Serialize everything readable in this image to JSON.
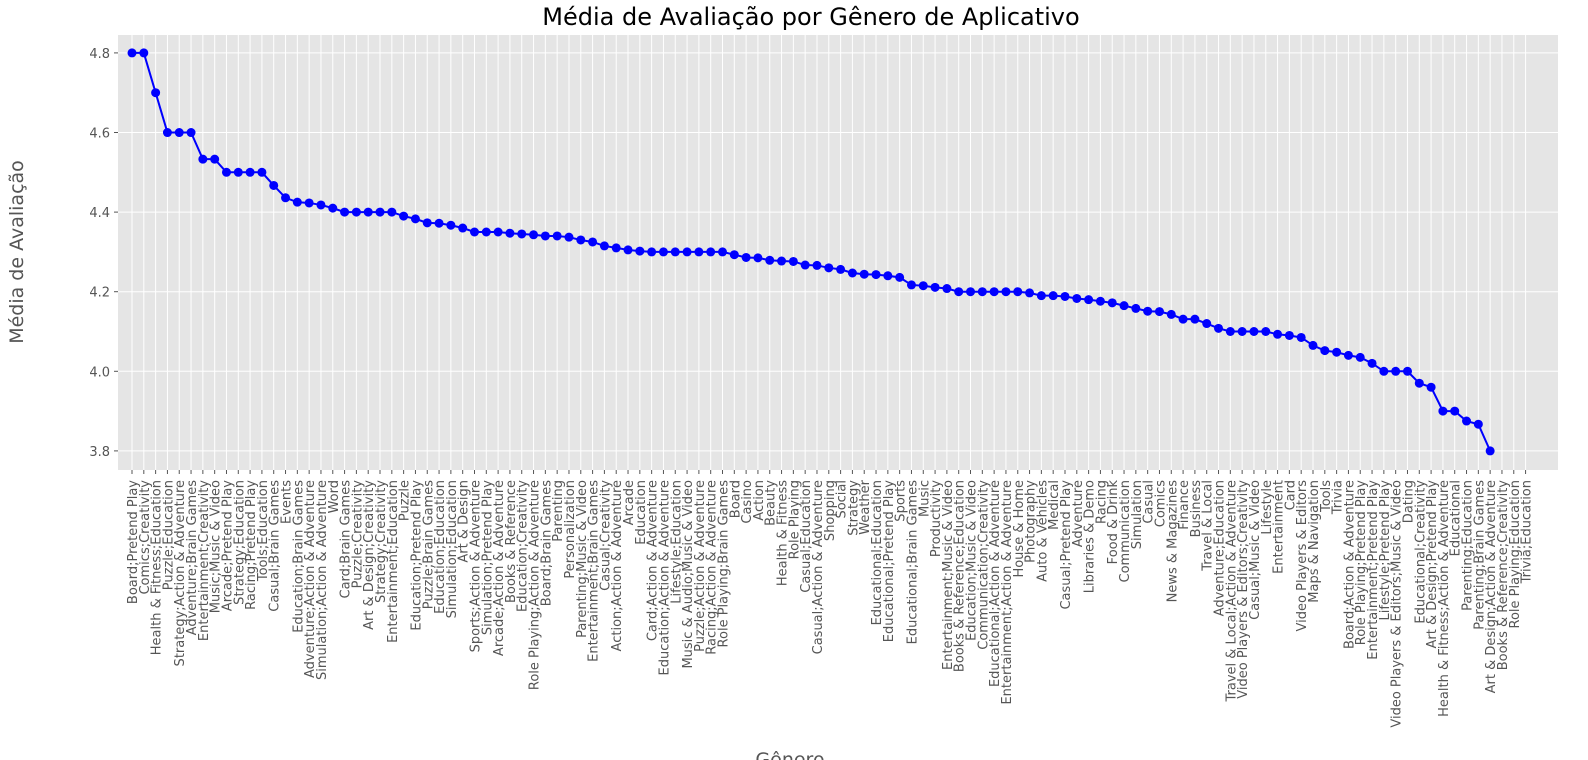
{
  "chart_data": {
    "type": "line",
    "title": "Média de Avaliação por Gênero de Aplicativo",
    "x_label": "Gênero",
    "y_label": "Média de Avaliação",
    "categories": [
      "Board;Pretend Play",
      "Comics;Creativity",
      "Health & Fitness;Education",
      "Puzzle;Education",
      "Strategy;Action & Adventure",
      "Adventure;Brain Games",
      "Entertainment;Creativity",
      "Music;Music & Video",
      "Arcade;Pretend Play",
      "Strategy;Education",
      "Racing;Pretend Play",
      "Tools;Education",
      "Casual;Brain Games",
      "Events",
      "Education;Brain Games",
      "Adventure;Action & Adventure",
      "Simulation;Action & Adventure",
      "Word",
      "Card;Brain Games",
      "Puzzle;Creativity",
      "Art & Design;Creativity",
      "Strategy;Creativity",
      "Entertainment;Education",
      "Puzzle",
      "Education;Pretend Play",
      "Puzzle;Brain Games",
      "Education;Education",
      "Simulation;Education",
      "Art & Design",
      "Sports;Action & Adventure",
      "Simulation;Pretend Play",
      "Arcade;Action & Adventure",
      "Books & Reference",
      "Education;Creativity",
      "Role Playing;Action & Adventure",
      "Board;Brain Games",
      "Parenting",
      "Personalization",
      "Parenting;Music & Video",
      "Entertainment;Brain Games",
      "Casual;Creativity",
      "Action;Action & Adventure",
      "Arcade",
      "Education",
      "Card;Action & Adventure",
      "Education;Action & Adventure",
      "Lifestyle;Education",
      "Music & Audio;Music & Video",
      "Puzzle;Action & Adventure",
      "Racing;Action & Adventure",
      "Role Playing;Brain Games",
      "Board",
      "Casino",
      "Action",
      "Beauty",
      "Health & Fitness",
      "Role Playing",
      "Casual;Education",
      "Casual;Action & Adventure",
      "Shopping",
      "Social",
      "Strategy",
      "Weather",
      "Educational;Education",
      "Educational;Pretend Play",
      "Sports",
      "Educational;Brain Games",
      "Music",
      "Productivity",
      "Entertainment;Music & Video",
      "Books & Reference;Education",
      "Education;Music & Video",
      "Communication;Creativity",
      "Educational;Action & Adventure",
      "Entertainment;Action & Adventure",
      "House & Home",
      "Photography",
      "Auto & Vehicles",
      "Medical",
      "Casual;Pretend Play",
      "Adventure",
      "Libraries & Demo",
      "Racing",
      "Food & Drink",
      "Communication",
      "Simulation",
      "Casual",
      "Comics",
      "News & Magazines",
      "Finance",
      "Business",
      "Travel & Local",
      "Adventure;Education",
      "Travel & Local;Action & Adventure",
      "Video Players & Editors;Creativity",
      "Casual;Music & Video",
      "Lifestyle",
      "Entertainment",
      "Card",
      "Video Players & Editors",
      "Maps & Navigation",
      "Tools",
      "Trivia",
      "Board;Action & Adventure",
      "Role Playing;Pretend Play",
      "Entertainment;Pretend Play",
      "Lifestyle;Pretend Play",
      "Video Players & Editors;Music & Video",
      "Dating",
      "Educational;Creativity",
      "Art & Design;Pretend Play",
      "Health & Fitness;Action & Adventure",
      "Educational",
      "Parenting;Education",
      "Parenting;Brain Games",
      "Art & Design;Action & Adventure",
      "Books & Reference;Creativity",
      "Role Playing;Education",
      "Trivia;Education"
    ],
    "values": [
      4.8,
      4.8,
      4.7,
      4.6,
      4.6,
      4.6,
      4.533,
      4.533,
      4.5,
      4.5,
      4.5,
      4.5,
      4.467,
      4.436,
      4.425,
      4.423,
      4.418,
      4.41,
      4.4,
      4.4,
      4.4,
      4.4,
      4.4,
      4.39,
      4.383,
      4.373,
      4.372,
      4.367,
      4.36,
      4.35,
      4.35,
      4.35,
      4.347,
      4.345,
      4.343,
      4.34,
      4.34,
      4.337,
      4.33,
      4.325,
      4.315,
      4.31,
      4.305,
      4.302,
      4.3,
      4.3,
      4.3,
      4.3,
      4.3,
      4.3,
      4.3,
      4.293,
      4.286,
      4.285,
      4.279,
      4.277,
      4.276,
      4.267,
      4.266,
      4.26,
      4.256,
      4.247,
      4.244,
      4.243,
      4.24,
      4.236,
      4.217,
      4.215,
      4.211,
      4.208,
      4.2,
      4.2,
      4.2,
      4.2,
      4.2,
      4.2,
      4.197,
      4.19,
      4.19,
      4.188,
      4.183,
      4.18,
      4.176,
      4.172,
      4.165,
      4.158,
      4.151,
      4.15,
      4.143,
      4.131,
      4.131,
      4.12,
      4.108,
      4.1,
      4.1,
      4.1,
      4.1,
      4.093,
      4.09,
      4.085,
      4.065,
      4.052,
      4.048,
      4.04,
      4.035,
      4.02,
      4.0,
      4.0,
      4.0,
      3.97,
      3.96,
      3.9,
      3.9,
      3.875,
      3.867,
      3.8,
      null,
      null,
      null
    ],
    "color": "#0000ff",
    "ylim": [
      3.752,
      4.845
    ],
    "yticks": [
      3.8,
      {
        "value": 4,
        "label": "4.0"
      },
      4.2,
      4.4,
      4.6,
      4.8
    ],
    "grid": true
  }
}
